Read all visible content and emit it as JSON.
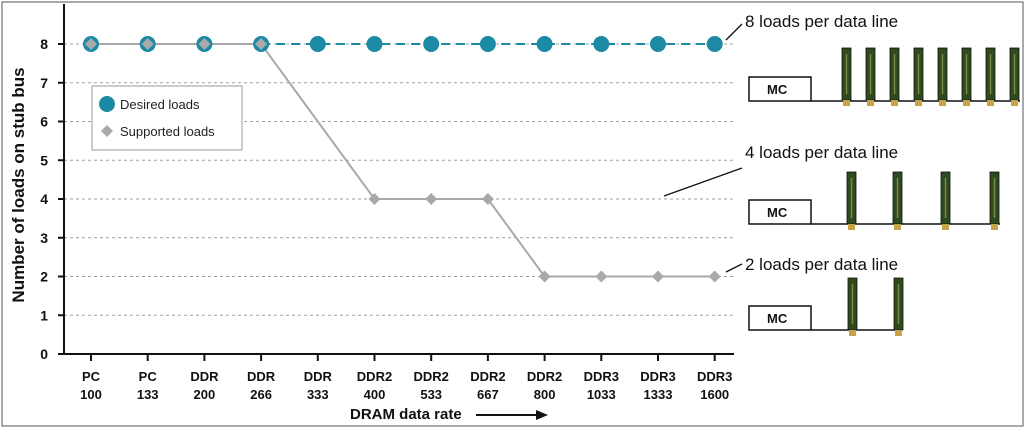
{
  "chart_data": {
    "type": "line",
    "ylabel": "Number of loads on stub bus",
    "xlabel": "DRAM data rate",
    "ylim": [
      0,
      8
    ],
    "yticks": [
      0,
      1,
      2,
      3,
      4,
      5,
      6,
      7,
      8
    ],
    "grid": true,
    "legend_position": "top-left",
    "categories": [
      [
        "PC",
        "100"
      ],
      [
        "PC",
        "133"
      ],
      [
        "DDR",
        "200"
      ],
      [
        "DDR",
        "266"
      ],
      [
        "DDR",
        "333"
      ],
      [
        "DDR2",
        "400"
      ],
      [
        "DDR2",
        "533"
      ],
      [
        "DDR2",
        "667"
      ],
      [
        "DDR2",
        "800"
      ],
      [
        "DDR3",
        "1033"
      ],
      [
        "DDR3",
        "1333"
      ],
      [
        "DDR3",
        "1600"
      ]
    ],
    "series": [
      {
        "name": "Desired loads",
        "values": [
          8,
          8,
          8,
          8,
          8,
          8,
          8,
          8,
          8,
          8,
          8,
          8
        ],
        "color": "#1c8aa5",
        "marker": "circle"
      },
      {
        "name": "Supported loads",
        "values": [
          8,
          8,
          8,
          8,
          null,
          4,
          4,
          4,
          2,
          2,
          2,
          2
        ],
        "color": "#a9a9a9",
        "marker": "diamond"
      }
    ],
    "annotations": [
      {
        "text": "8 loads per data line",
        "loads": 8
      },
      {
        "text": "4 loads per data line",
        "loads": 4
      },
      {
        "text": "2 loads per data line",
        "loads": 2
      }
    ],
    "controller_label": "MC"
  },
  "colors": {
    "axis": "#111111",
    "grid": "#a0a0a0",
    "desired": "#1c8aa5",
    "supported": "#a9a9a9",
    "module": "#2f4a1e",
    "module_pins": "#c7a248"
  }
}
